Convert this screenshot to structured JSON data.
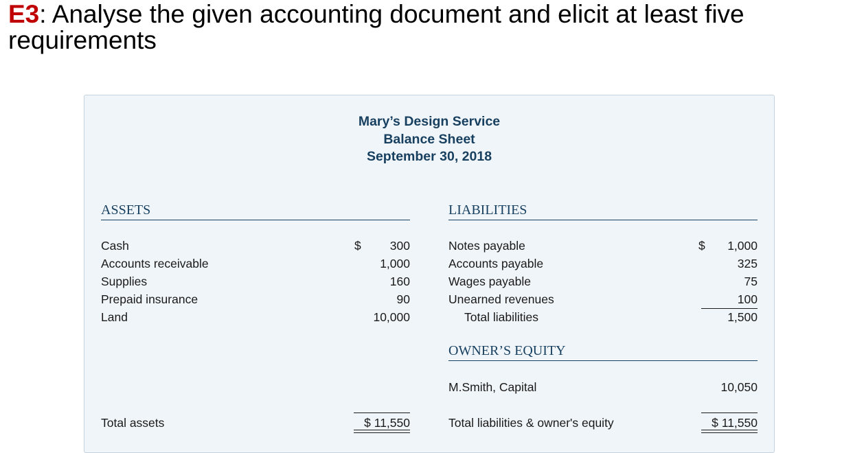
{
  "heading": {
    "tag": "E3",
    "text": ": Analyse the given accounting document and elicit at least five requirements"
  },
  "company": {
    "name": "Mary’s Design Service",
    "statement": "Balance Sheet",
    "date": "September 30, 2018"
  },
  "assets": {
    "title": "ASSETS",
    "items": [
      {
        "label": "Cash",
        "currency": "$",
        "amount": "300"
      },
      {
        "label": "Accounts receivable",
        "amount": "1,000"
      },
      {
        "label": "Supplies",
        "amount": "160"
      },
      {
        "label": "Prepaid insurance",
        "amount": "90"
      },
      {
        "label": "Land",
        "amount": "10,000"
      }
    ],
    "total_label": "Total assets",
    "total_amount": "$ 11,550"
  },
  "liabilities": {
    "title": "LIABILITIES",
    "items": [
      {
        "label": "Notes payable",
        "currency": "$",
        "amount": "1,000"
      },
      {
        "label": "Accounts payable",
        "amount": "325"
      },
      {
        "label": "Wages payable",
        "amount": "75"
      },
      {
        "label": "Unearned revenues",
        "amount": "100"
      }
    ],
    "total_label": "Total liabilities",
    "total_amount": "1,500"
  },
  "equity": {
    "title": "OWNER’S EQUITY",
    "capital_label": "M.Smith, Capital",
    "capital_amount": "10,050",
    "total_label": "Total liabilities & owner's equity",
    "total_amount": "$ 11,550"
  }
}
